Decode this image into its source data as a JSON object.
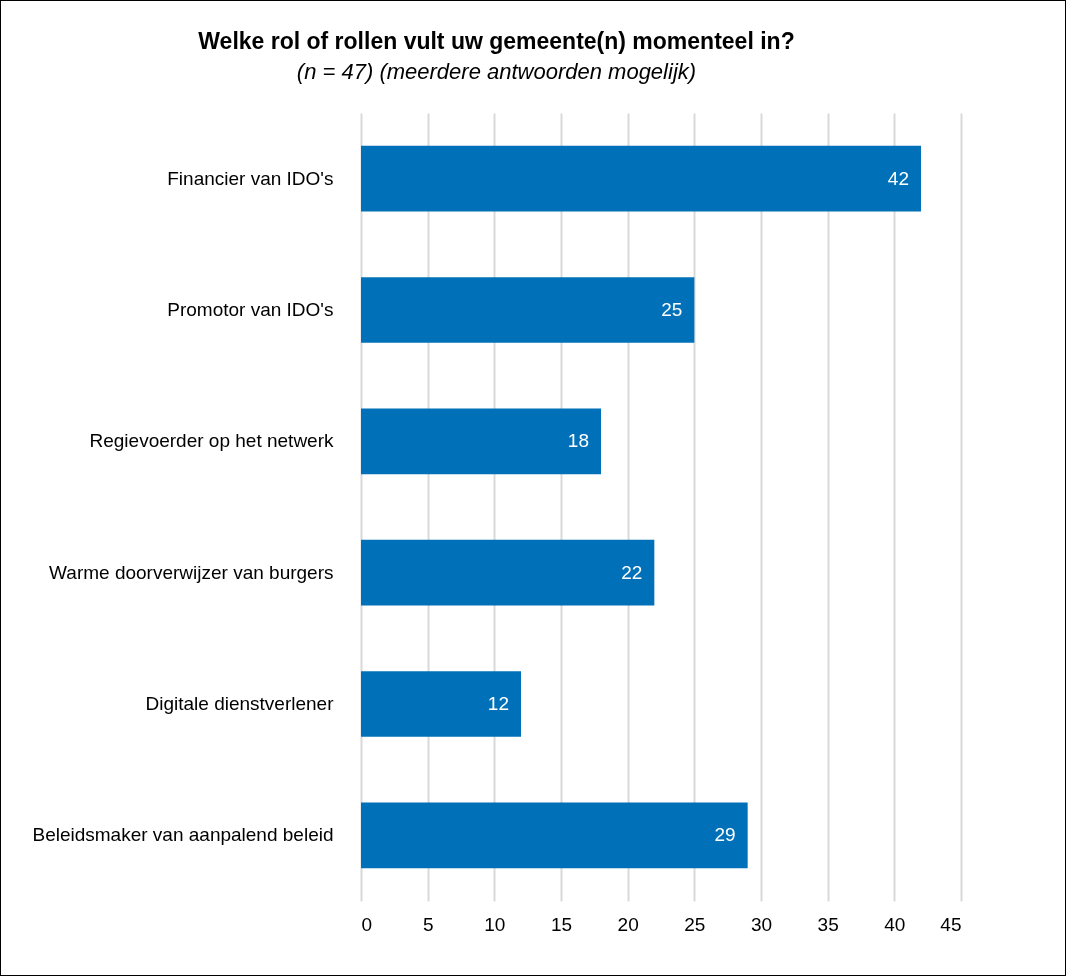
{
  "chart_data": {
    "type": "bar",
    "orientation": "horizontal",
    "title": "Welke rol of rollen vult uw gemeente(n) momenteel in?",
    "subtitle": "(n = 47) (meerdere antwoorden mogelijk)",
    "categories": [
      "Financier van IDO's",
      "Promotor van IDO's",
      "Regievoerder op het netwerk",
      "Warme doorverwijzer van burgers",
      "Digitale dienstverlener",
      "Beleidsmaker van aanpalend beleid"
    ],
    "values": [
      42,
      25,
      18,
      22,
      12,
      29
    ],
    "color": "#0070b8",
    "xlim": [
      0,
      45
    ],
    "xticks": [
      0,
      5,
      10,
      15,
      20,
      25,
      30,
      35,
      40,
      45
    ],
    "grid": "x",
    "data_labels": true
  }
}
